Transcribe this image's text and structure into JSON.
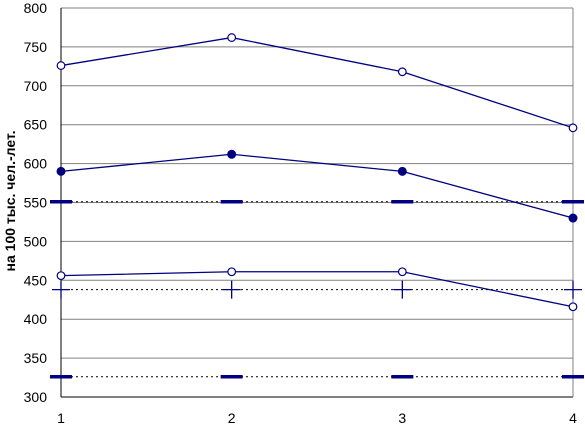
{
  "chart_data": {
    "type": "line",
    "title": "",
    "xlabel": "",
    "ylabel": "на 100 тыс. чел.-лет.",
    "x": [
      1,
      2,
      3,
      4
    ],
    "xticks": [
      "1",
      "2",
      "3",
      "4"
    ],
    "ylim": [
      300,
      800
    ],
    "yticks": [
      "300",
      "350",
      "400",
      "450",
      "500",
      "550",
      "600",
      "650",
      "700",
      "750",
      "800"
    ],
    "grid": true,
    "legend": "none",
    "series": [
      {
        "marker": "open-circle",
        "line": "solid",
        "values": [
          726,
          762,
          718,
          646
        ]
      },
      {
        "marker": "filled-circle",
        "line": "solid",
        "values": [
          590,
          612,
          590,
          530
        ]
      },
      {
        "marker": "open-circle",
        "line": "solid",
        "values": [
          456,
          461,
          461,
          416
        ]
      },
      {
        "marker": "dash",
        "line": "dotted",
        "values": [
          551,
          551,
          551,
          551
        ]
      },
      {
        "marker": "plus",
        "line": "dotted",
        "values": [
          438,
          438,
          438,
          438
        ]
      },
      {
        "marker": "dash",
        "line": "dotted",
        "values": [
          326,
          326,
          326,
          326
        ]
      }
    ],
    "colors": {
      "line": "#000080",
      "grid": "#808080",
      "axis": "#000000"
    }
  }
}
